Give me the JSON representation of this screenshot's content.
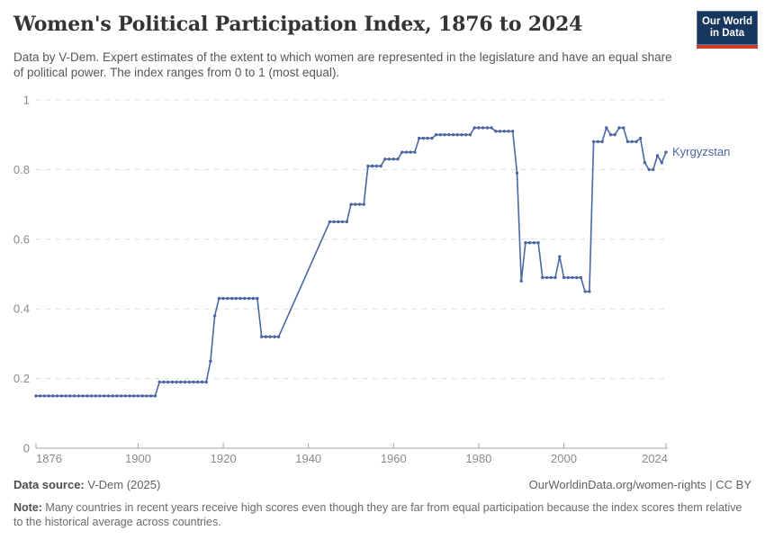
{
  "header": {
    "title": "Women's Political Participation Index, 1876 to 2024",
    "subtitle": "Data by V-Dem. Expert estimates of the extent to which women are represented in the legislature and have an equal share of political power. The index ranges from 0 to 1 (most equal).",
    "logo": {
      "line1": "Our World",
      "line2": "in Data"
    }
  },
  "chart_data": {
    "type": "line",
    "title": "Women's Political Participation Index, 1876 to 2024",
    "entity": "Kyrgyzstan",
    "xlabel": "",
    "ylabel": "",
    "xlim": [
      1876,
      2024
    ],
    "ylim": [
      0,
      1
    ],
    "x_ticks": [
      1876,
      1900,
      1920,
      1940,
      1960,
      1980,
      2000,
      2024
    ],
    "y_ticks": [
      0,
      0.2,
      0.4,
      0.6,
      0.8,
      1
    ],
    "y_tick_labels": [
      "0",
      "0.2",
      "0.4",
      "0.6",
      "0.8",
      "1"
    ],
    "grid": "horizontal dashed gridlines on",
    "legend_position": "label at end of line",
    "line_color": "#4b67a1",
    "data_gap_note": "no annual markers 1934-1944; straight interpolated segment connects 1933 (0.32) to 1945 (0.65)",
    "points": [
      [
        1876,
        0.15
      ],
      [
        1877,
        0.15
      ],
      [
        1878,
        0.15
      ],
      [
        1879,
        0.15
      ],
      [
        1880,
        0.15
      ],
      [
        1881,
        0.15
      ],
      [
        1882,
        0.15
      ],
      [
        1883,
        0.15
      ],
      [
        1884,
        0.15
      ],
      [
        1885,
        0.15
      ],
      [
        1886,
        0.15
      ],
      [
        1887,
        0.15
      ],
      [
        1888,
        0.15
      ],
      [
        1889,
        0.15
      ],
      [
        1890,
        0.15
      ],
      [
        1891,
        0.15
      ],
      [
        1892,
        0.15
      ],
      [
        1893,
        0.15
      ],
      [
        1894,
        0.15
      ],
      [
        1895,
        0.15
      ],
      [
        1896,
        0.15
      ],
      [
        1897,
        0.15
      ],
      [
        1898,
        0.15
      ],
      [
        1899,
        0.15
      ],
      [
        1900,
        0.15
      ],
      [
        1901,
        0.15
      ],
      [
        1902,
        0.15
      ],
      [
        1903,
        0.15
      ],
      [
        1904,
        0.15
      ],
      [
        1905,
        0.19
      ],
      [
        1906,
        0.19
      ],
      [
        1907,
        0.19
      ],
      [
        1908,
        0.19
      ],
      [
        1909,
        0.19
      ],
      [
        1910,
        0.19
      ],
      [
        1911,
        0.19
      ],
      [
        1912,
        0.19
      ],
      [
        1913,
        0.19
      ],
      [
        1914,
        0.19
      ],
      [
        1915,
        0.19
      ],
      [
        1916,
        0.19
      ],
      [
        1917,
        0.25
      ],
      [
        1918,
        0.38
      ],
      [
        1919,
        0.43
      ],
      [
        1920,
        0.43
      ],
      [
        1921,
        0.43
      ],
      [
        1922,
        0.43
      ],
      [
        1923,
        0.43
      ],
      [
        1924,
        0.43
      ],
      [
        1925,
        0.43
      ],
      [
        1926,
        0.43
      ],
      [
        1927,
        0.43
      ],
      [
        1928,
        0.43
      ],
      [
        1929,
        0.32
      ],
      [
        1930,
        0.32
      ],
      [
        1931,
        0.32
      ],
      [
        1932,
        0.32
      ],
      [
        1933,
        0.32
      ],
      [
        1945,
        0.65
      ],
      [
        1946,
        0.65
      ],
      [
        1947,
        0.65
      ],
      [
        1948,
        0.65
      ],
      [
        1949,
        0.65
      ],
      [
        1950,
        0.7
      ],
      [
        1951,
        0.7
      ],
      [
        1952,
        0.7
      ],
      [
        1953,
        0.7
      ],
      [
        1954,
        0.81
      ],
      [
        1955,
        0.81
      ],
      [
        1956,
        0.81
      ],
      [
        1957,
        0.81
      ],
      [
        1958,
        0.83
      ],
      [
        1959,
        0.83
      ],
      [
        1960,
        0.83
      ],
      [
        1961,
        0.83
      ],
      [
        1962,
        0.85
      ],
      [
        1963,
        0.85
      ],
      [
        1964,
        0.85
      ],
      [
        1965,
        0.85
      ],
      [
        1966,
        0.89
      ],
      [
        1967,
        0.89
      ],
      [
        1968,
        0.89
      ],
      [
        1969,
        0.89
      ],
      [
        1970,
        0.9
      ],
      [
        1971,
        0.9
      ],
      [
        1972,
        0.9
      ],
      [
        1973,
        0.9
      ],
      [
        1974,
        0.9
      ],
      [
        1975,
        0.9
      ],
      [
        1976,
        0.9
      ],
      [
        1977,
        0.9
      ],
      [
        1978,
        0.9
      ],
      [
        1979,
        0.92
      ],
      [
        1980,
        0.92
      ],
      [
        1981,
        0.92
      ],
      [
        1982,
        0.92
      ],
      [
        1983,
        0.92
      ],
      [
        1984,
        0.91
      ],
      [
        1985,
        0.91
      ],
      [
        1986,
        0.91
      ],
      [
        1987,
        0.91
      ],
      [
        1988,
        0.91
      ],
      [
        1989,
        0.79
      ],
      [
        1990,
        0.48
      ],
      [
        1991,
        0.59
      ],
      [
        1992,
        0.59
      ],
      [
        1993,
        0.59
      ],
      [
        1994,
        0.59
      ],
      [
        1995,
        0.49
      ],
      [
        1996,
        0.49
      ],
      [
        1997,
        0.49
      ],
      [
        1998,
        0.49
      ],
      [
        1999,
        0.55
      ],
      [
        2000,
        0.49
      ],
      [
        2001,
        0.49
      ],
      [
        2002,
        0.49
      ],
      [
        2003,
        0.49
      ],
      [
        2004,
        0.49
      ],
      [
        2005,
        0.45
      ],
      [
        2006,
        0.45
      ],
      [
        2007,
        0.88
      ],
      [
        2008,
        0.88
      ],
      [
        2009,
        0.88
      ],
      [
        2010,
        0.92
      ],
      [
        2011,
        0.9
      ],
      [
        2012,
        0.9
      ],
      [
        2013,
        0.92
      ],
      [
        2014,
        0.92
      ],
      [
        2015,
        0.88
      ],
      [
        2016,
        0.88
      ],
      [
        2017,
        0.88
      ],
      [
        2018,
        0.89
      ],
      [
        2019,
        0.82
      ],
      [
        2020,
        0.8
      ],
      [
        2021,
        0.8
      ],
      [
        2022,
        0.84
      ],
      [
        2023,
        0.82
      ],
      [
        2024,
        0.85
      ]
    ]
  },
  "footer": {
    "datasource_label": "Data source:",
    "datasource_value": " V-Dem (2025)",
    "rights": "OurWorldinData.org/women-rights | CC BY",
    "note_label": "Note:",
    "note_text": " Many countries in recent years receive high scores even though they are far from equal participation because the index scores them relative to the historical average across countries."
  }
}
